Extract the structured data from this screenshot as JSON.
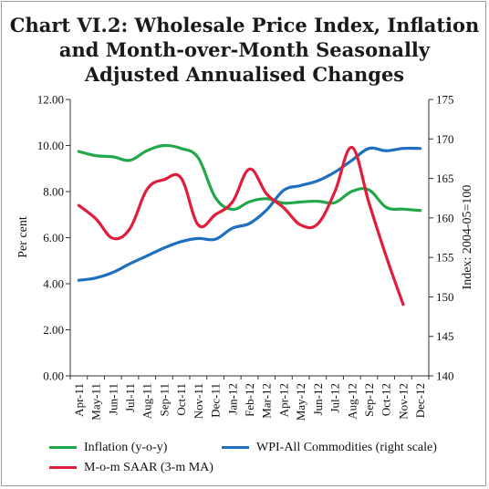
{
  "title_lines": [
    "Chart VI.2: Wholesale Price Index, Inflation",
    "and Month-over-Month Seasonally",
    "Adjusted Annualised Changes"
  ],
  "chart_data": {
    "type": "line",
    "title": "Chart VI.2: Wholesale Price Index, Inflation and Month-over-Month Seasonally Adjusted Annualised Changes",
    "categories": [
      "Apr-11",
      "May-11",
      "Jun-11",
      "Jul-11",
      "Aug-11",
      "Sep-11",
      "Oct-11",
      "Nov-11",
      "Dec-11",
      "Jan-12",
      "Feb-12",
      "Mar-12",
      "Apr-12",
      "May-12",
      "Jun-12",
      "Jul-12",
      "Aug-12",
      "Sep-12",
      "Oct-12",
      "Nov-12",
      "Dec-12"
    ],
    "ylabel_left": "Per cent",
    "ylabel_right": "Index: 2004-05=100",
    "ylim_left": [
      0,
      12
    ],
    "ylim_right": [
      140,
      175
    ],
    "yticks_left": [
      "0.00",
      "2.00",
      "4.00",
      "6.00",
      "8.00",
      "10.00",
      "12.00"
    ],
    "yticks_right": [
      "140",
      "145",
      "150",
      "155",
      "160",
      "165",
      "170",
      "175"
    ],
    "grid": false,
    "legend_position": "bottom",
    "series": [
      {
        "name": "Inflation (y-o-y)",
        "axis": "left",
        "color": "#22a84a",
        "values": [
          9.74,
          9.56,
          9.51,
          9.36,
          9.78,
          10.0,
          9.87,
          9.46,
          7.74,
          7.23,
          7.56,
          7.69,
          7.5,
          7.55,
          7.58,
          7.52,
          8.01,
          8.07,
          7.32,
          7.24,
          7.18
        ]
      },
      {
        "name": "WPI-All Commodities (right scale)",
        "axis": "right",
        "color": "#1f6fc0",
        "values": [
          152.1,
          152.4,
          153.1,
          154.2,
          155.2,
          156.2,
          157.0,
          157.4,
          157.3,
          158.7,
          159.3,
          161.0,
          163.5,
          164.1,
          164.7,
          165.8,
          167.3,
          168.8,
          168.5,
          168.8,
          168.8
        ]
      },
      {
        "name": "M-o-m SAAR (3-m MA)",
        "axis": "left",
        "color": "#e21d3c",
        "values": [
          7.4,
          6.82,
          5.97,
          6.4,
          8.1,
          8.52,
          8.58,
          6.55,
          7.0,
          7.55,
          8.98,
          7.9,
          7.3,
          6.55,
          6.6,
          8.0,
          9.92,
          7.5,
          5.2,
          3.1,
          null
        ]
      }
    ]
  }
}
